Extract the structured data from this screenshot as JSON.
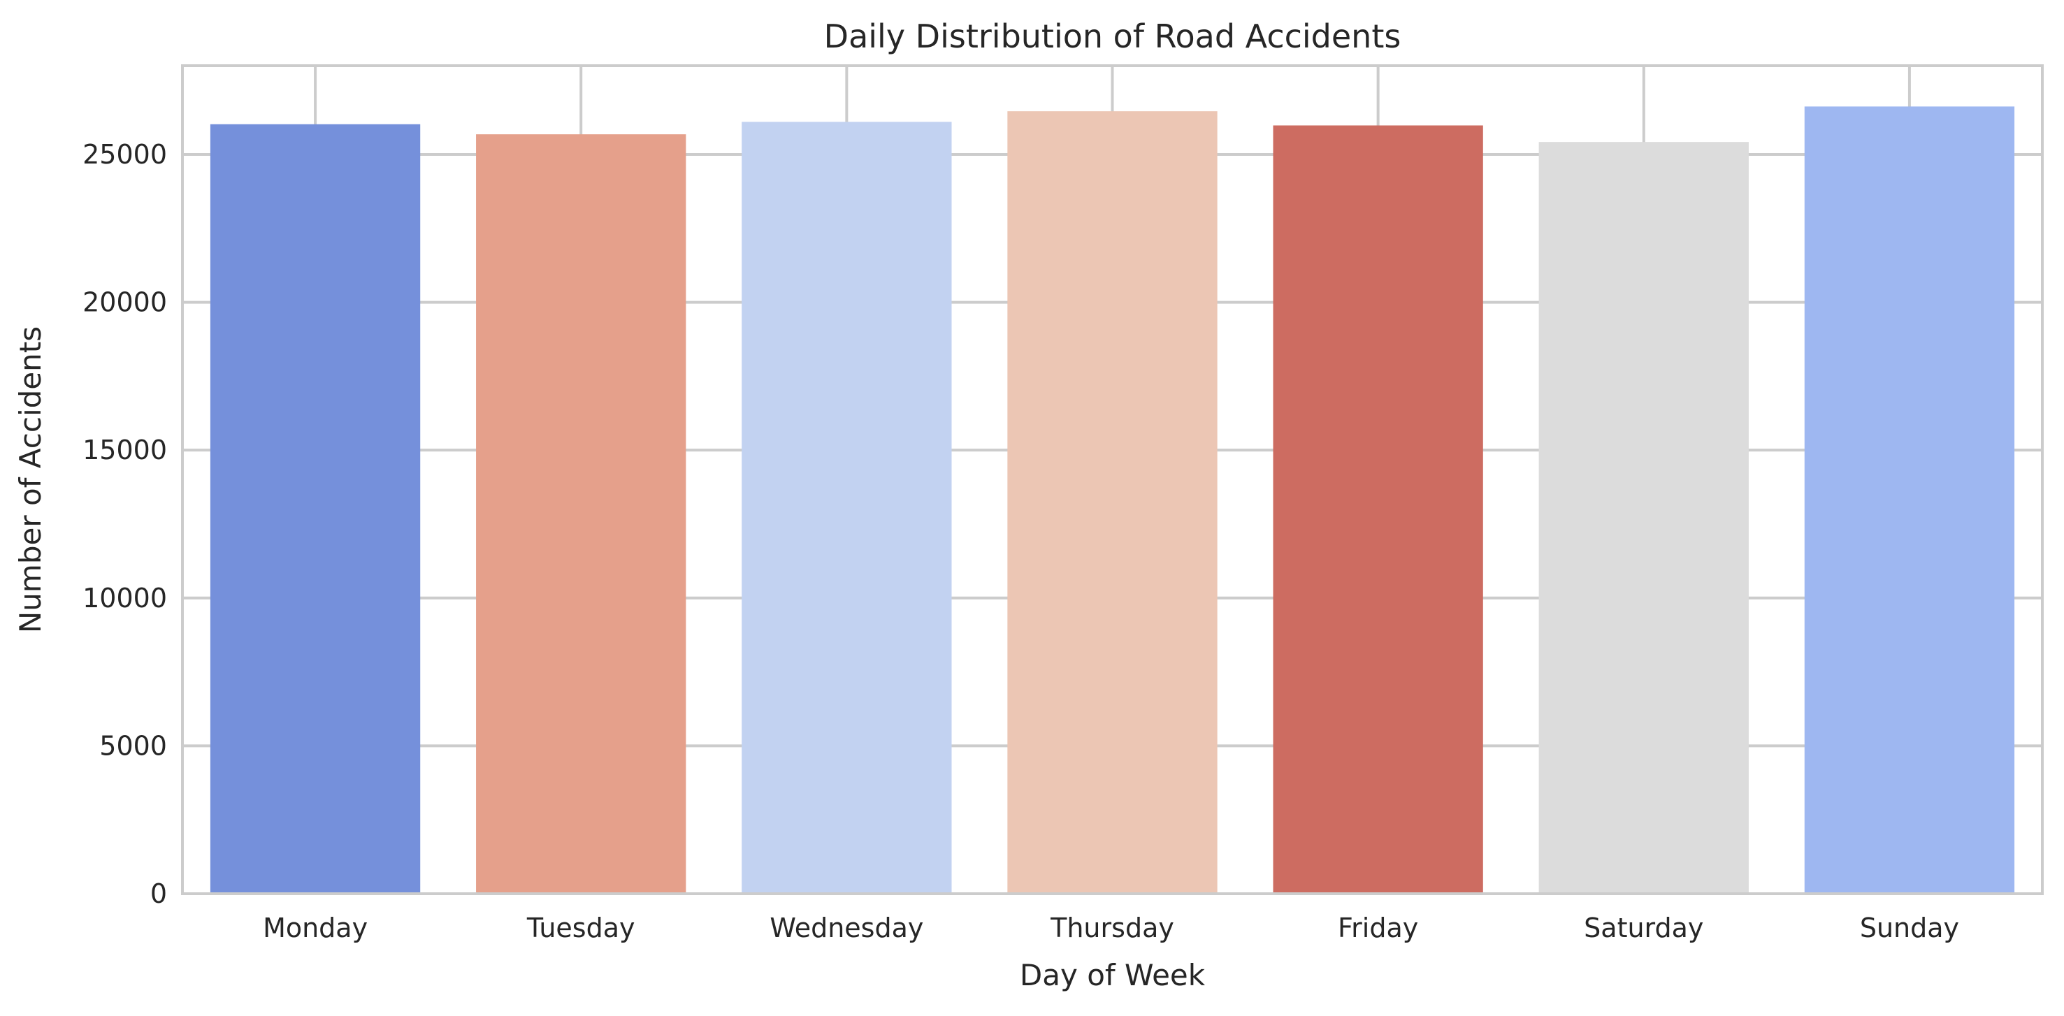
{
  "chart_data": {
    "type": "bar",
    "title": "Daily Distribution of Road Accidents",
    "xlabel": "Day of Week",
    "ylabel": "Number of Accidents",
    "categories": [
      "Monday",
      "Tuesday",
      "Wednesday",
      "Thursday",
      "Friday",
      "Saturday",
      "Sunday"
    ],
    "values": [
      26020,
      25680,
      26100,
      26460,
      25980,
      25420,
      26620
    ],
    "colors": [
      "#7590db",
      "#e5a08b",
      "#c2d2f1",
      "#ecc6b4",
      "#cd6c61",
      "#dcdcdc",
      "#9eb7f1"
    ],
    "ylim": [
      0,
      28000
    ],
    "yticks": [
      0,
      5000,
      10000,
      15000,
      20000,
      25000
    ],
    "ytick_labels": [
      "0",
      "5000",
      "10000",
      "15000",
      "20000",
      "25000"
    ],
    "grid": true,
    "legend": "none"
  }
}
